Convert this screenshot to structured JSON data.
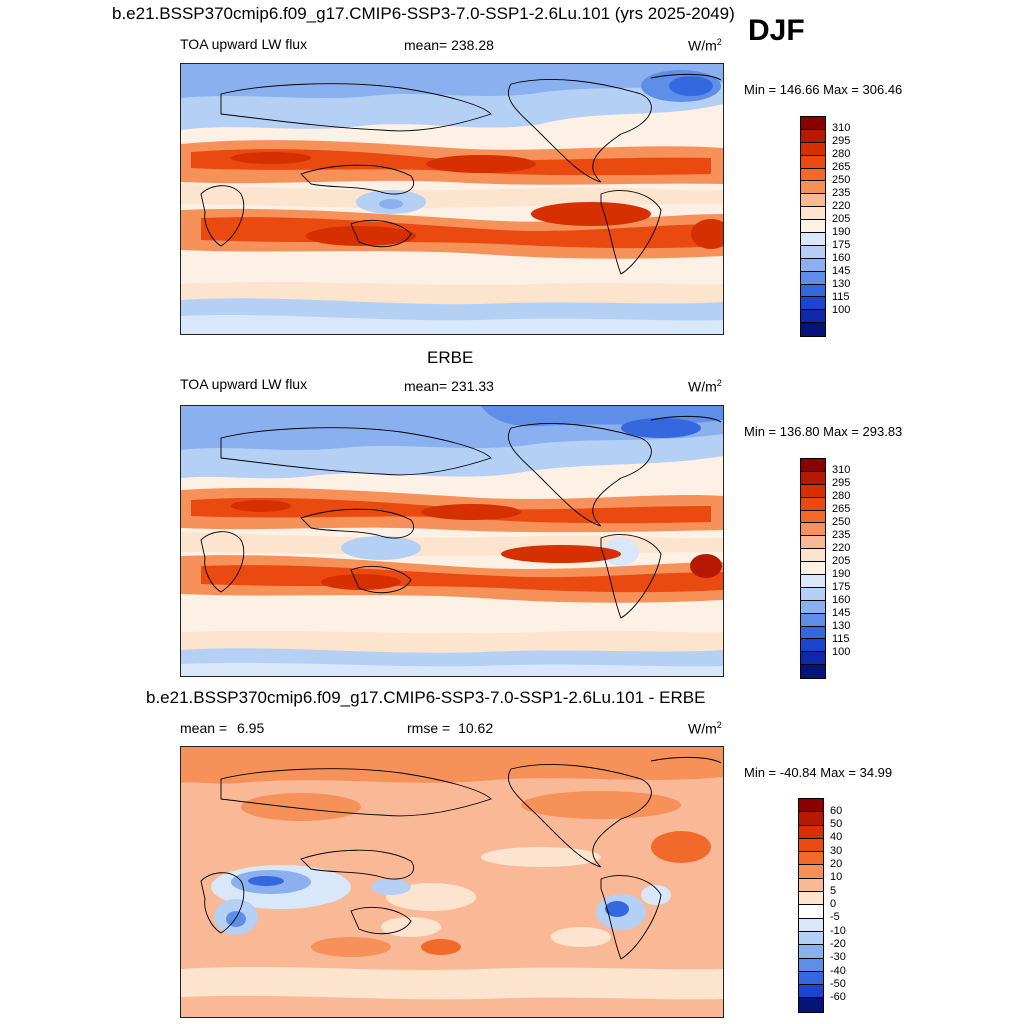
{
  "header": {
    "run_title": "b.e21.BSSP370cmip6.f09_g17.CMIP6-SSP3-7.0-SSP1-2.6Lu.101 (yrs 2025-2049)",
    "season": "DJF"
  },
  "panels": [
    {
      "id": "model",
      "title": "",
      "variable": "TOA upward LW flux",
      "stat_label": "mean=",
      "stat_value": "238.28",
      "units": "W/m",
      "units_sup": "2",
      "minmax": "Min = 146.66 Max = 306.46",
      "colorbar_labels": [
        "310",
        "295",
        "280",
        "265",
        "250",
        "235",
        "220",
        "205",
        "190",
        "175",
        "160",
        "145",
        "130",
        "115",
        "100"
      ]
    },
    {
      "id": "obs",
      "title": "ERBE",
      "variable": "TOA upward LW flux",
      "stat_label": "mean=",
      "stat_value": "231.33",
      "units": "W/m",
      "units_sup": "2",
      "minmax": "Min = 136.80 Max = 293.83",
      "colorbar_labels": [
        "310",
        "295",
        "280",
        "265",
        "250",
        "235",
        "220",
        "205",
        "190",
        "175",
        "160",
        "145",
        "130",
        "115",
        "100"
      ]
    },
    {
      "id": "diff",
      "title": "b.e21.BSSP370cmip6.f09_g17.CMIP6-SSP3-7.0-SSP1-2.6Lu.101 - ERBE",
      "variable": "",
      "stat_label": "mean =",
      "stat_value": "6.95",
      "stat2_label": "rmse =",
      "stat2_value": "10.62",
      "units": "W/m",
      "units_sup": "2",
      "minmax": "Min = -40.84 Max =  34.99",
      "colorbar_labels": [
        "60",
        "50",
        "40",
        "30",
        "20",
        "10",
        "5",
        "0",
        "-5",
        "-10",
        "-20",
        "-30",
        "-40",
        "-50",
        "-60"
      ]
    }
  ],
  "colors": {
    "abs_scale": [
      "#8b0000",
      "#b51a00",
      "#d63000",
      "#ea4a10",
      "#f26a2a",
      "#f6915a",
      "#f9b896",
      "#fce4cf",
      "#fdf1e6",
      "#d8e8fa",
      "#b5d0f5",
      "#8ab0f0",
      "#5f8ee8",
      "#3568de",
      "#1a45cc",
      "#0f28a8",
      "#06147a"
    ],
    "diff_scale": [
      "#8b0000",
      "#b51a00",
      "#d63000",
      "#ea4a10",
      "#f26a2a",
      "#f6915a",
      "#f9b896",
      "#fce4cf",
      "#ffffff",
      "#d8e8fa",
      "#b5d0f5",
      "#8ab0f0",
      "#5f8ee8",
      "#3568de",
      "#1a45cc",
      "#06147a"
    ]
  }
}
